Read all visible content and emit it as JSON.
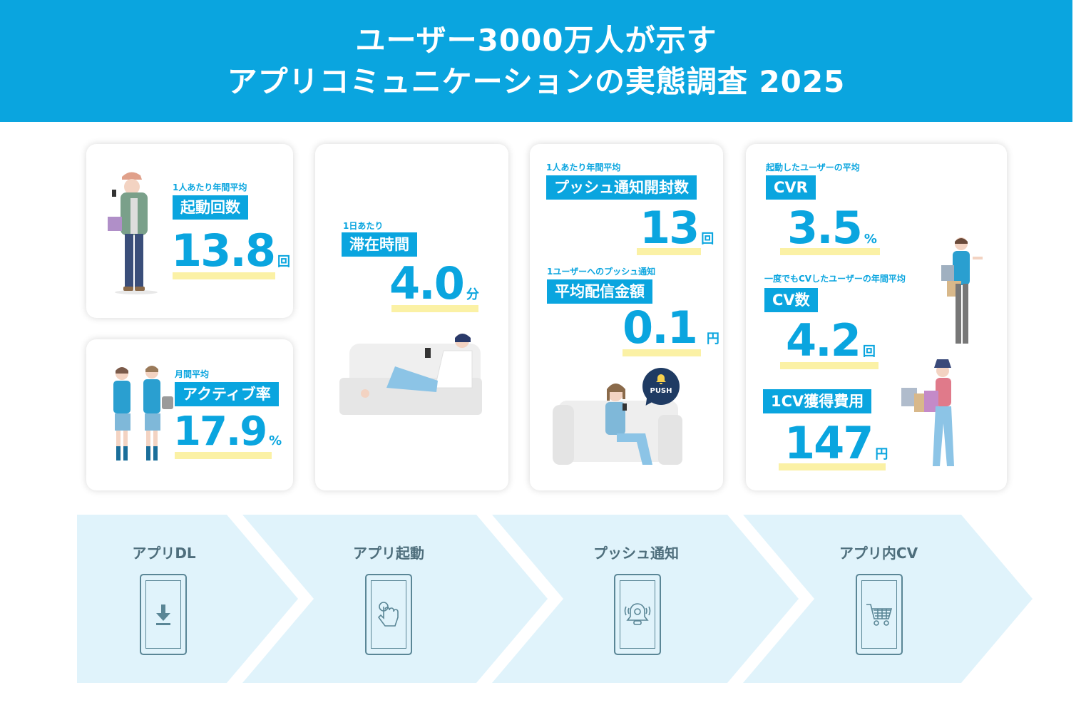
{
  "header": {
    "line1": "ユーザー3000万人が示す",
    "line2": "アプリコミュニケーションの実態調査 2025"
  },
  "colors": {
    "accent": "#0aa5df",
    "highlight": "#fbf1a5",
    "flow_bg": "#e0f3fb",
    "icon_line": "#5a8696"
  },
  "cards": {
    "launch": {
      "caption": "1人あたり年間平均",
      "label": "起動回数",
      "value": "13.8",
      "unit": "回"
    },
    "active": {
      "caption": "月間平均",
      "label": "アクティブ率",
      "value": "17.9",
      "unit": "%"
    },
    "stay": {
      "caption": "1日あたり",
      "label": "滞在時間",
      "value": "4.0",
      "unit": "分"
    },
    "push_open": {
      "caption": "1人あたり年間平均",
      "label": "プッシュ通知開封数",
      "value": "13",
      "unit": "回"
    },
    "push_cost": {
      "caption": "1ユーザーへのプッシュ通知",
      "label": "平均配信金額",
      "value": "0.1",
      "unit": "円"
    },
    "push_bubble": "PUSH",
    "cvr": {
      "caption": "起動したユーザーの平均",
      "label": "CVR",
      "value": "3.5",
      "unit": "%"
    },
    "cv_count": {
      "caption": "一度でもCVしたユーザーの年間平均",
      "label": "CV数",
      "value": "4.2",
      "unit": "回"
    },
    "cv_cost": {
      "label": "1CV獲得費用",
      "value": "147",
      "unit": "円"
    }
  },
  "flow": [
    {
      "label": "アプリDL",
      "icon": "download-icon"
    },
    {
      "label": "アプリ起動",
      "icon": "tap-hand-icon"
    },
    {
      "label": "プッシュ通知",
      "icon": "bell-icon"
    },
    {
      "label": "アプリ内CV",
      "icon": "shopping-cart-icon"
    }
  ]
}
